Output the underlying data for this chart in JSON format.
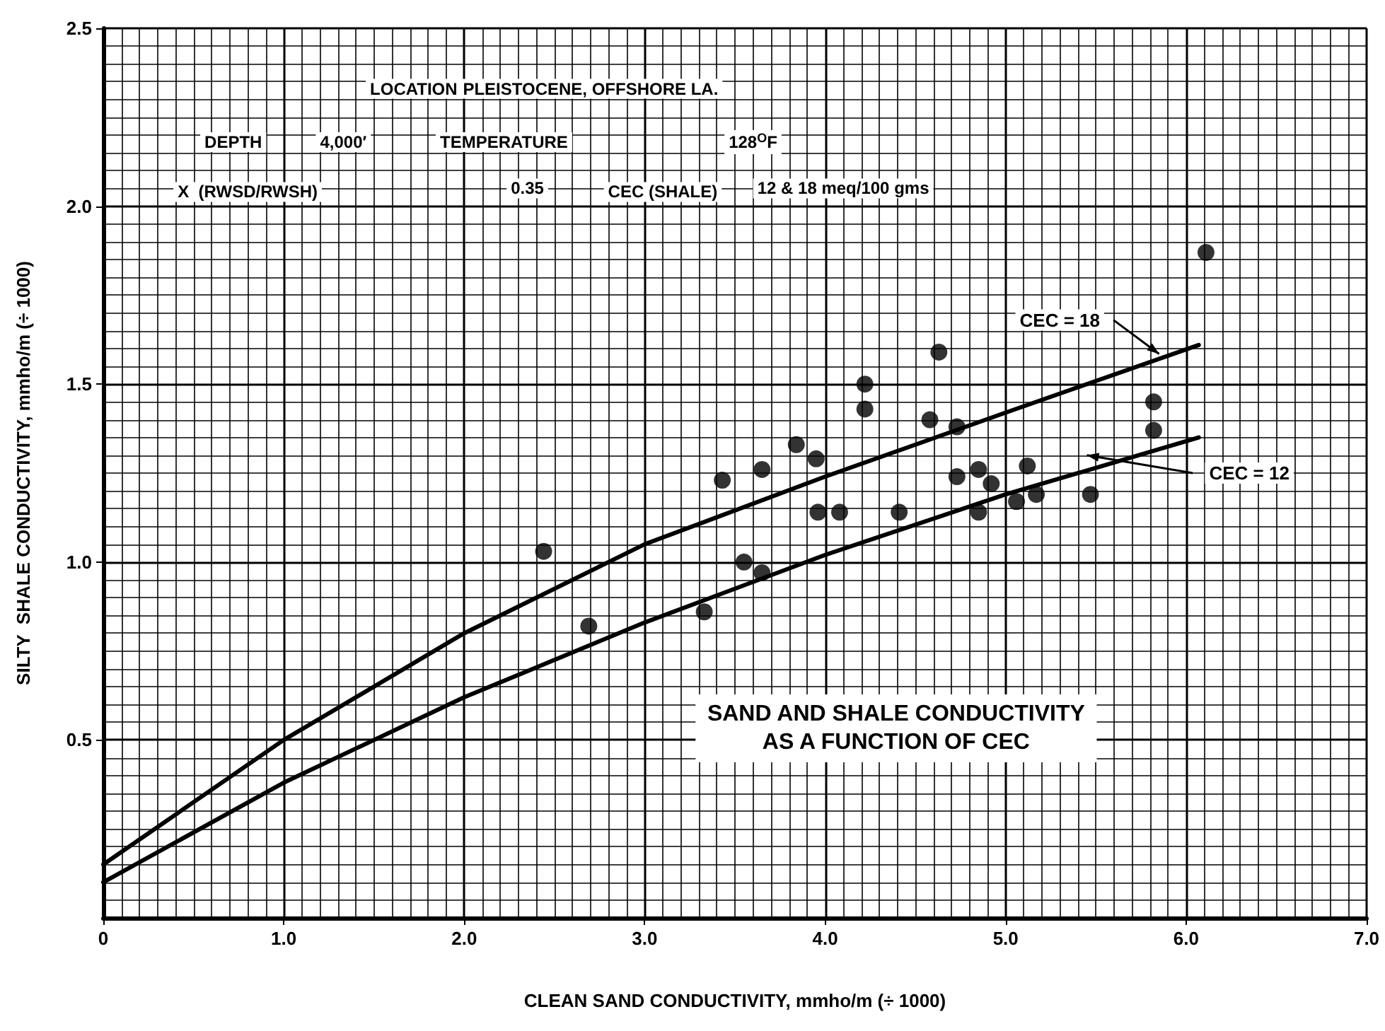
{
  "chart_data": {
    "type": "scatter",
    "title": "SAND AND SHALE CONDUCTIVITY\nAS A FUNCTION OF CEC",
    "xlabel": "CLEAN SAND CONDUCTIVITY, mmho/m (÷ 1000)",
    "ylabel": "SILTY  SHALE CONDUCTIVITY, mmho/m (÷ 1000)",
    "annotations": [
      "LOCATION",
      "PLEISTOCENE, OFFSHORE LA.",
      "DEPTH",
      "4,000′",
      "TEMPERATURE",
      "128$^{O}$F",
      "X  (RWSD/RWSH)",
      "0.35",
      "CEC (SHALE)",
      "12 & 18 meq/100 gms"
    ],
    "xlim": [
      0,
      7
    ],
    "ylim": [
      0,
      2.5
    ],
    "xticks": [
      0,
      {
        "value": 1,
        "label": "1.0"
      },
      {
        "value": 2,
        "label": "2.0"
      },
      {
        "value": 3,
        "label": "3.0"
      },
      {
        "value": 4,
        "label": "4.0"
      },
      {
        "value": 5,
        "label": "5.0"
      },
      {
        "value": 6,
        "label": "6.0"
      },
      {
        "value": 7,
        "label": "7.0"
      }
    ],
    "yticks": [
      0.5,
      {
        "value": 1,
        "label": "1.0"
      },
      1.5,
      {
        "value": 2,
        "label": "2.0"
      },
      2.5
    ],
    "grid": true,
    "marker": "circle",
    "series": [
      {
        "color": "#000000",
        "x": [
          2.44,
          2.69,
          3.33,
          3.43,
          3.55,
          3.65,
          3.65,
          3.84,
          3.95,
          3.96,
          4.08,
          4.22,
          4.22,
          4.41,
          4.58,
          4.63,
          4.73,
          4.73,
          4.85,
          4.85,
          4.92,
          5.06,
          5.12,
          5.17,
          5.47,
          5.82,
          5.82,
          6.11
        ],
        "values": [
          1.03,
          0.82,
          0.86,
          1.23,
          1.0,
          1.26,
          0.97,
          1.33,
          1.29,
          1.14,
          1.14,
          1.5,
          1.43,
          1.14,
          1.4,
          1.59,
          1.38,
          1.24,
          1.26,
          1.14,
          1.22,
          1.17,
          1.27,
          1.19,
          1.19,
          1.45,
          1.37,
          1.87
        ]
      },
      {
        "type": "line",
        "name": "CEC = 18",
        "color": "#000000",
        "marker": "none",
        "x": [
          0,
          1,
          2,
          3,
          4,
          5,
          6.07
        ],
        "values": [
          0.15,
          0.5,
          0.8,
          1.05,
          1.24,
          1.42,
          1.61
        ]
      },
      {
        "type": "line",
        "name": "CEC = 12",
        "color": "#000000",
        "marker": "none",
        "x": [
          0,
          1,
          2,
          3,
          4,
          5,
          6.07
        ],
        "values": [
          0.1,
          0.38,
          0.62,
          0.83,
          1.02,
          1.19,
          1.35
        ]
      }
    ]
  }
}
